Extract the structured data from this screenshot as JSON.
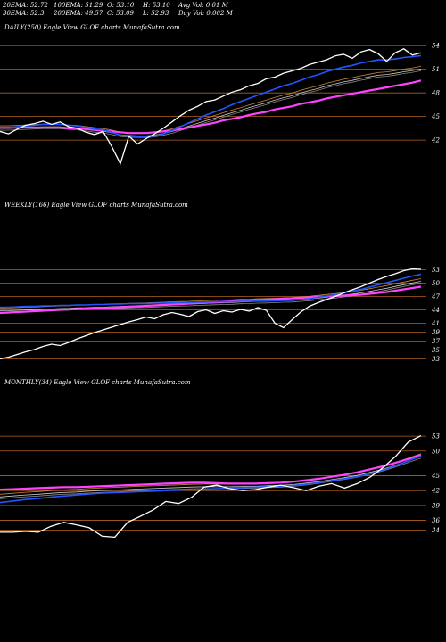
{
  "header": {
    "col1": [
      "20EMA: 52.72",
      "30EMA: 52.3"
    ],
    "col2": [
      "100EMA: 51.29",
      "200EMA: 49.57"
    ],
    "col3": [
      "O: 53.10",
      "C: 53.09"
    ],
    "col4": [
      "H: 53.10",
      "L: 52.93"
    ],
    "col5": [
      "Avg Vol: 0.01  M",
      "Day Vol: 0.002  M"
    ]
  },
  "colors": {
    "price": "#ffffff",
    "ema_short": "#2255ff",
    "ema_long": "#ff44ff",
    "grid": "#b06020",
    "ema_mid": "#cccccc",
    "ema_orange": "#cc8833"
  },
  "chart_data": [
    {
      "type": "line",
      "label": "DAILY(250) Eagle  View  GLOF charts MunafaSutra.com",
      "yticks": [
        54,
        51,
        48,
        45,
        42
      ],
      "ylim": [
        38.5,
        55.5
      ],
      "series": [
        {
          "key": "price",
          "values": [
            43.1,
            42.8,
            43.4,
            43.9,
            44.1,
            44.4,
            44.0,
            44.3,
            43.7,
            43.5,
            43.0,
            42.7,
            43.1,
            41.2,
            39.0,
            42.5,
            41.5,
            42.2,
            42.8,
            43.5,
            44.3,
            45.1,
            45.8,
            46.3,
            46.9,
            47.1,
            47.6,
            48.1,
            48.4,
            48.9,
            49.2,
            49.8,
            50.0,
            50.5,
            50.8,
            51.1,
            51.6,
            51.9,
            52.2,
            52.7,
            52.9,
            52.4,
            53.2,
            53.5,
            53.0,
            52.0,
            53.1,
            53.6,
            52.8,
            53.09
          ]
        },
        {
          "key": "ema_short",
          "values": [
            43.6,
            43.6,
            43.7,
            43.8,
            43.9,
            44.0,
            44.0,
            44.0,
            43.9,
            43.8,
            43.6,
            43.4,
            43.3,
            43.0,
            42.6,
            42.5,
            42.4,
            42.4,
            42.5,
            42.8,
            43.2,
            43.7,
            44.2,
            44.7,
            45.2,
            45.6,
            46.0,
            46.5,
            46.9,
            47.3,
            47.7,
            48.1,
            48.5,
            48.9,
            49.2,
            49.6,
            50.0,
            50.3,
            50.7,
            51.0,
            51.3,
            51.5,
            51.8,
            52.0,
            52.2,
            52.2,
            52.3,
            52.5,
            52.6,
            52.72
          ]
        },
        {
          "key": "ema_long",
          "values": [
            43.6,
            43.6,
            43.6,
            43.6,
            43.6,
            43.6,
            43.6,
            43.6,
            43.5,
            43.5,
            43.4,
            43.3,
            43.2,
            43.1,
            43.0,
            42.9,
            42.9,
            42.9,
            43.0,
            43.1,
            43.2,
            43.4,
            43.6,
            43.8,
            44.0,
            44.2,
            44.5,
            44.7,
            44.9,
            45.2,
            45.4,
            45.6,
            45.9,
            46.1,
            46.3,
            46.6,
            46.8,
            47.0,
            47.3,
            47.5,
            47.7,
            47.9,
            48.1,
            48.3,
            48.5,
            48.7,
            48.9,
            49.1,
            49.3,
            49.57
          ]
        }
      ]
    },
    {
      "type": "line",
      "label": "WEEKLY(166) Eagle  View  GLOF charts MunafaSutra.com",
      "yticks": [
        53,
        50,
        47,
        44,
        41,
        39,
        37,
        35,
        33
      ],
      "ylim": [
        31.5,
        55.5
      ],
      "series": [
        {
          "key": "price",
          "values": [
            33.0,
            33.4,
            34.0,
            34.6,
            35.1,
            35.8,
            36.3,
            36.0,
            36.7,
            37.5,
            38.2,
            38.9,
            39.5,
            40.1,
            40.7,
            41.3,
            41.8,
            42.4,
            42.0,
            42.9,
            43.4,
            43.0,
            42.5,
            43.6,
            44.0,
            43.2,
            43.8,
            43.5,
            44.1,
            43.7,
            44.5,
            43.9,
            41.0,
            40.0,
            41.8,
            43.5,
            44.8,
            45.6,
            46.3,
            47.0,
            47.8,
            48.5,
            49.2,
            50.0,
            50.8,
            51.5,
            52.1,
            52.8,
            53.2,
            53.09
          ]
        },
        {
          "key": "ema_short",
          "values": [
            44.6,
            44.6,
            44.7,
            44.8,
            44.8,
            44.9,
            44.9,
            45.0,
            45.0,
            45.1,
            45.1,
            45.2,
            45.2,
            45.3,
            45.3,
            45.4,
            45.4,
            45.4,
            45.5,
            45.5,
            45.6,
            45.6,
            45.6,
            45.7,
            45.7,
            45.8,
            45.8,
            45.8,
            45.9,
            45.9,
            46.0,
            46.0,
            46.0,
            46.1,
            46.1,
            46.3,
            46.5,
            46.8,
            47.1,
            47.4,
            47.8,
            48.2,
            48.6,
            49.1,
            49.6,
            50.1,
            50.6,
            51.1,
            51.6,
            52.0
          ]
        },
        {
          "key": "ema_long",
          "values": [
            43.3,
            43.4,
            43.5,
            43.6,
            43.7,
            43.8,
            43.9,
            44.0,
            44.1,
            44.2,
            44.3,
            44.4,
            44.4,
            44.5,
            44.6,
            44.7,
            44.8,
            44.9,
            45.0,
            45.1,
            45.2,
            45.3,
            45.4,
            45.5,
            45.6,
            45.7,
            45.8,
            45.9,
            46.0,
            46.1,
            46.2,
            46.3,
            46.4,
            46.5,
            46.6,
            46.7,
            46.8,
            46.9,
            47.0,
            47.1,
            47.2,
            47.3,
            47.4,
            47.6,
            47.8,
            48.0,
            48.3,
            48.6,
            48.9,
            49.2
          ]
        }
      ]
    },
    {
      "type": "line",
      "label": "MONTHLY(34) Eagle  View  GLOF charts MunafaSutra.com",
      "yticks": [
        53,
        50,
        45,
        42,
        39,
        36,
        34
      ],
      "ylim": [
        32.5,
        55.0
      ],
      "series": [
        {
          "key": "price",
          "values": [
            33.6,
            33.6,
            33.8,
            33.6,
            34.8,
            35.6,
            35.1,
            34.5,
            32.8,
            32.6,
            35.6,
            36.8,
            38.1,
            39.8,
            39.4,
            40.6,
            42.7,
            43.1,
            42.4,
            42.0,
            42.2,
            42.7,
            43.1,
            42.6,
            42.0,
            42.9,
            43.4,
            42.5,
            43.4,
            44.7,
            46.6,
            48.9,
            51.8,
            53.09
          ]
        },
        {
          "key": "ema_short",
          "values": [
            39.6,
            39.9,
            40.2,
            40.4,
            40.7,
            40.9,
            41.1,
            41.3,
            41.5,
            41.6,
            41.7,
            41.8,
            41.9,
            42.0,
            42.1,
            42.2,
            42.3,
            42.4,
            42.5,
            42.6,
            42.7,
            42.8,
            42.9,
            43.0,
            43.3,
            43.6,
            44.0,
            44.4,
            44.8,
            45.4,
            46.1,
            47.0,
            48.0,
            49.0
          ]
        },
        {
          "key": "ema_long",
          "values": [
            42.2,
            42.3,
            42.4,
            42.5,
            42.6,
            42.7,
            42.7,
            42.8,
            42.9,
            43.0,
            43.1,
            43.2,
            43.3,
            43.4,
            43.5,
            43.6,
            43.6,
            43.5,
            43.4,
            43.4,
            43.4,
            43.5,
            43.6,
            43.8,
            44.1,
            44.4,
            44.8,
            45.2,
            45.7,
            46.3,
            46.9,
            47.6,
            48.4,
            49.2
          ]
        }
      ]
    }
  ]
}
